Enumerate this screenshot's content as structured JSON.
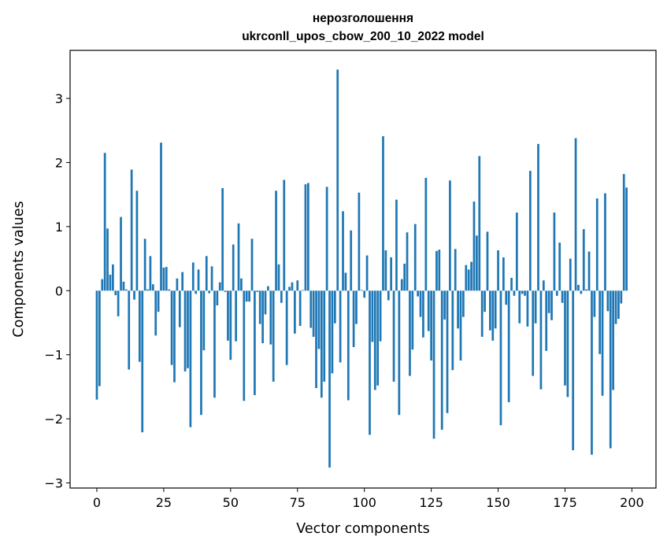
{
  "chart_data": {
    "type": "bar",
    "title_line1": "нерозголошення",
    "title_line2": "ukrconll_upos_cbow_200_10_2022 model",
    "xlabel": "Vector components",
    "ylabel": "Components values",
    "xlim": [
      -10,
      209
    ],
    "ylim": [
      -3.08,
      3.75
    ],
    "xticks": [
      0,
      25,
      50,
      75,
      100,
      125,
      150,
      175,
      200
    ],
    "yticks": [
      -3,
      -2,
      -1,
      0,
      1,
      2,
      3
    ],
    "bar_color": "#1f77b4",
    "values": [
      -1.7,
      -1.49,
      0.18,
      2.15,
      0.97,
      0.25,
      0.41,
      -0.07,
      -0.4,
      1.15,
      0.14,
      0.02,
      -1.23,
      1.89,
      -0.14,
      1.56,
      -1.11,
      -2.21,
      0.81,
      0.02,
      0.54,
      0.1,
      -0.7,
      -0.33,
      2.31,
      0.36,
      0.37,
      0.02,
      -1.16,
      -1.43,
      0.19,
      -0.57,
      0.29,
      -1.26,
      -1.21,
      -2.13,
      0.44,
      -0.05,
      0.33,
      -1.94,
      -0.93,
      0.54,
      -0.04,
      0.38,
      -1.67,
      -0.23,
      0.13,
      1.6,
      -0.02,
      -0.78,
      -1.08,
      0.72,
      -0.79,
      1.05,
      0.19,
      -1.72,
      -0.17,
      -0.17,
      0.81,
      -1.63,
      -0.02,
      -0.52,
      -0.82,
      -0.37,
      0.07,
      -0.84,
      -1.42,
      1.56,
      0.41,
      -0.19,
      1.73,
      -1.16,
      0.06,
      0.13,
      -0.67,
      0.16,
      -0.55,
      0.01,
      1.66,
      1.68,
      -0.58,
      -0.72,
      -1.52,
      -0.91,
      -1.67,
      -1.42,
      1.62,
      -2.76,
      -1.29,
      -0.51,
      3.45,
      -1.12,
      1.24,
      0.28,
      -1.71,
      0.94,
      -0.88,
      -0.52,
      1.53,
      0.01,
      -0.11,
      0.55,
      -2.25,
      -0.8,
      -1.55,
      -1.48,
      -0.79,
      2.41,
      0.63,
      -0.15,
      0.52,
      -1.42,
      1.42,
      -1.94,
      0.18,
      0.42,
      0.91,
      -1.33,
      -0.92,
      1.04,
      -0.09,
      -0.41,
      -0.73,
      1.76,
      -0.63,
      -1.09,
      -2.31,
      0.62,
      0.64,
      -2.17,
      -0.45,
      -1.91,
      1.72,
      -1.24,
      0.65,
      -0.59,
      -1.09,
      -0.41,
      0.4,
      0.33,
      0.45,
      1.39,
      0.86,
      2.1,
      -0.72,
      -0.33,
      0.92,
      -0.62,
      -0.78,
      -0.59,
      0.63,
      -2.1,
      0.52,
      -0.22,
      -1.74,
      0.2,
      -0.08,
      1.22,
      -0.51,
      -0.05,
      -0.08,
      -0.56,
      1.87,
      -1.33,
      -0.51,
      2.29,
      -1.54,
      0.16,
      -0.94,
      -0.35,
      -0.46,
      1.22,
      -0.08,
      0.75,
      -0.19,
      -1.48,
      -1.66,
      0.5,
      -2.49,
      2.38,
      0.09,
      -0.05,
      0.96,
      0.02,
      0.61,
      -2.56,
      -0.41,
      1.44,
      -0.99,
      -1.64,
      1.52,
      -0.32,
      -2.46,
      -1.55,
      -0.52,
      -0.44,
      -0.2,
      1.82,
      1.61
    ]
  }
}
